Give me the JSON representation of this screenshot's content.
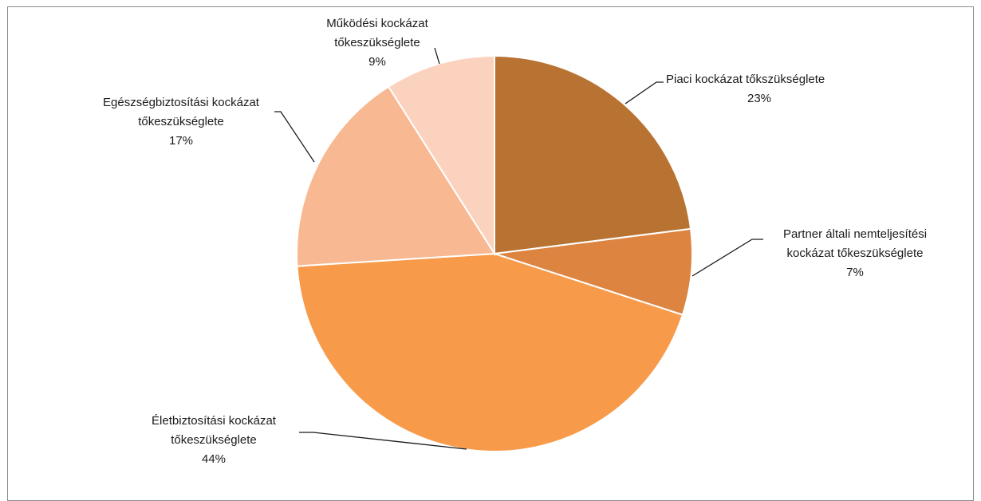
{
  "chart_data": {
    "type": "pie",
    "title": "",
    "start_angle_deg": 0,
    "direction": "clockwise",
    "slices": [
      {
        "label_lines": [
          "Piaci kockázat tőkszükséglete"
        ],
        "value": 23,
        "value_label": "23%",
        "color": "#B87333"
      },
      {
        "label_lines": [
          "Partner általi nemteljesítési",
          "kockázat tőkeszükséglete"
        ],
        "value": 7,
        "value_label": "7%",
        "color": "#DD8441"
      },
      {
        "label_lines": [
          "Életbiztosítási kockázat",
          "tőkeszükséglete"
        ],
        "value": 44,
        "value_label": "44%",
        "color": "#F79B4B"
      },
      {
        "label_lines": [
          "Egészségbiztosítási kockázat",
          "tőkeszükséglete"
        ],
        "value": 17,
        "value_label": "17%",
        "color": "#F8B891"
      },
      {
        "label_lines": [
          "Működési kockázat",
          "tőkeszükséglete"
        ],
        "value": 9,
        "value_label": "9%",
        "color": "#FBD2BE"
      }
    ]
  }
}
